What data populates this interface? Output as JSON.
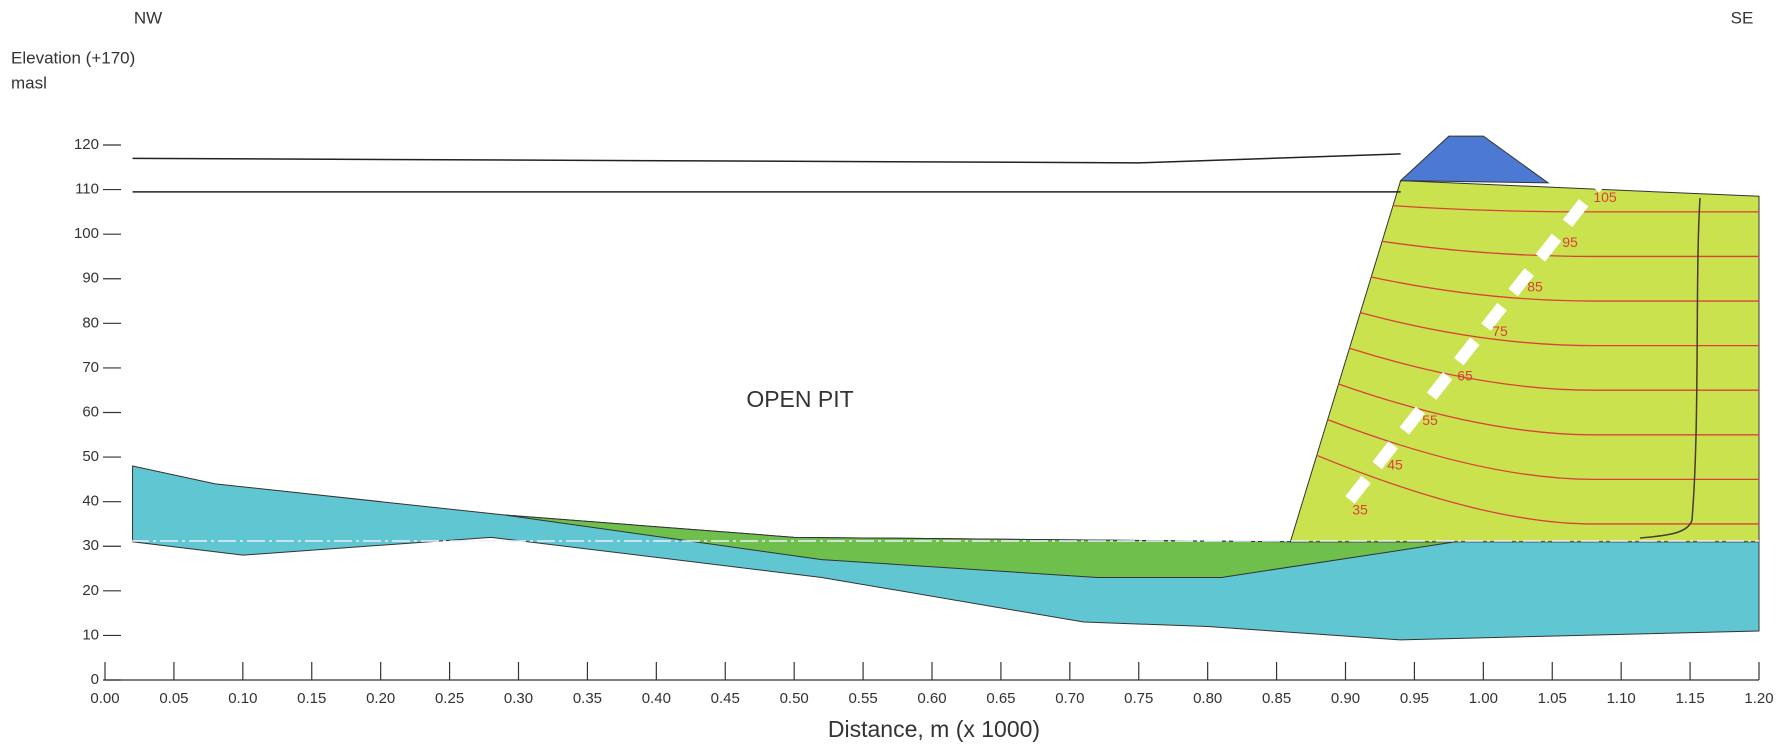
{
  "chart_data": {
    "type": "cross-section",
    "direction_left": "NW",
    "direction_right": "SE",
    "y_label": [
      "Elevation (+170)",
      "masl"
    ],
    "x_label": "Distance, m (x  1000)",
    "annotation": "OPEN PIT",
    "xlim": [
      0,
      1.2
    ],
    "ylim": [
      0,
      120
    ],
    "xticks": [
      {
        "value": 0,
        "label": "0.00"
      },
      0.05,
      {
        "value": 0.1,
        "label": "0.10"
      },
      0.15,
      {
        "value": 0.2,
        "label": "0.20"
      },
      0.25,
      {
        "value": 0.3,
        "label": "0.30"
      },
      0.35,
      {
        "value": 0.4,
        "label": "0.40"
      },
      0.45,
      {
        "value": 0.5,
        "label": "0.50"
      },
      0.55,
      {
        "value": 0.6,
        "label": "0.60"
      },
      0.65,
      {
        "value": 0.7,
        "label": "0.70"
      },
      0.75,
      {
        "value": 0.8,
        "label": "0.80"
      },
      0.85,
      {
        "value": 0.9,
        "label": "0.90"
      },
      0.95,
      {
        "value": 1,
        "label": "1.00"
      },
      1.05,
      {
        "value": 1.1,
        "label": "1.10"
      },
      1.15,
      {
        "value": 1.2,
        "label": "1.20"
      }
    ],
    "yticks": [
      0,
      10,
      20,
      30,
      40,
      50,
      60,
      70,
      80,
      90,
      100,
      110,
      120
    ],
    "regions": [
      {
        "color": "#5fc6d2",
        "x": [
          0.02,
          0.08,
          0.29,
          0.5,
          0.86,
          1.2,
          1.2,
          0.94,
          0.8,
          0.71,
          0.52,
          0.28,
          0.1,
          0.02
        ],
        "y": [
          48,
          44,
          37,
          32,
          31,
          31,
          11,
          9,
          12,
          13,
          23,
          32,
          28,
          31
        ]
      },
      {
        "color": "#6fbf4c",
        "x": [
          0.29,
          0.5,
          0.86,
          0.98,
          0.81,
          0.72,
          0.52
        ],
        "y": [
          37,
          32,
          31,
          31,
          23,
          23,
          27
        ]
      },
      {
        "color": "#cbe24f",
        "x": [
          0.86,
          0.94,
          1.2,
          1.2
        ],
        "y": [
          31,
          112,
          108.5,
          31
        ]
      },
      {
        "color": "#4c7ad2",
        "x": [
          0.94,
          0.975,
          1.0,
          1.047
        ],
        "y": [
          112,
          122,
          122,
          111.5
        ]
      }
    ],
    "lines": [
      {
        "color": "#222222",
        "x": [
          0.02,
          0.75,
          0.94
        ],
        "y": [
          117,
          116,
          118
        ]
      },
      {
        "color": "#222222",
        "x": [
          0.02,
          0.94
        ],
        "y": [
          109.5,
          109.5
        ]
      }
    ],
    "contours": {
      "color": "#d9423a",
      "levels": [
        35,
        45,
        55,
        65,
        75,
        85,
        95,
        105
      ]
    }
  }
}
